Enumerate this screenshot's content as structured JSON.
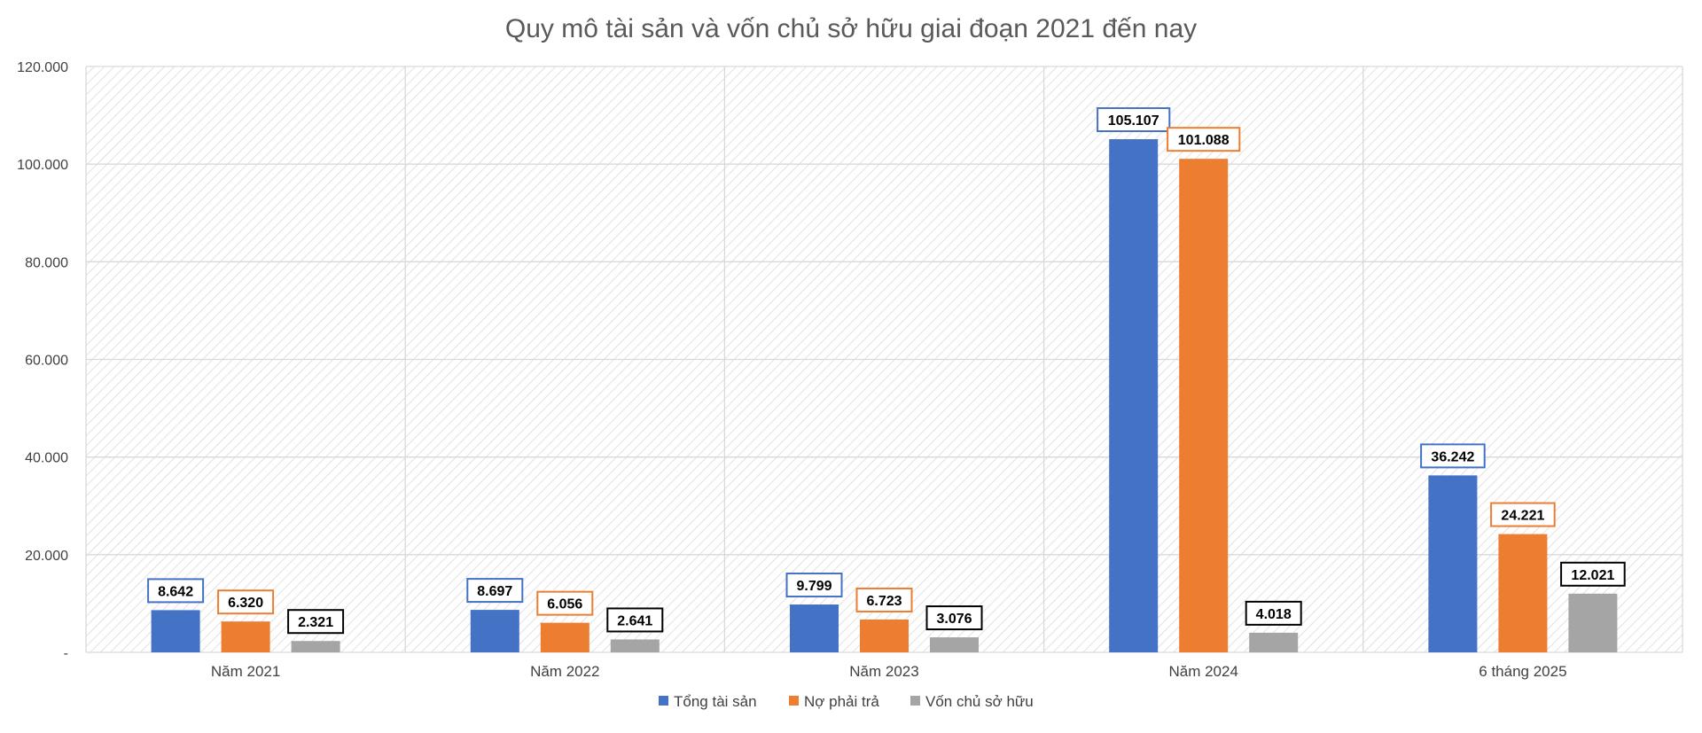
{
  "chart_data": {
    "type": "bar",
    "title": "Quy mô tài sản và vốn chủ sở hữu giai đoạn 2021 đến nay",
    "xlabel": "",
    "ylabel": "",
    "categories": [
      "Năm 2021",
      "Năm 2022",
      "Năm 2023",
      "Năm 2024",
      "6 tháng 2025"
    ],
    "series": [
      {
        "name": "Tổng tài sản",
        "color": "#4472C4",
        "values": [
          8642,
          8697,
          9799,
          105107,
          36242
        ],
        "labels": [
          "8.642",
          "8.697",
          "9.799",
          "105.107",
          "36.242"
        ]
      },
      {
        "name": "Nợ phải trả",
        "color": "#ED7D31",
        "values": [
          6320,
          6056,
          6723,
          101088,
          24221
        ],
        "labels": [
          "6.320",
          "6.056",
          "6.723",
          "101.088",
          "24.221"
        ]
      },
      {
        "name": "Vốn chủ sở hữu",
        "color": "#A5A5A5",
        "label_border": "#000000",
        "values": [
          2321,
          2641,
          3076,
          4018,
          12021
        ],
        "labels": [
          "2.321",
          "2.641",
          "3.076",
          "4.018",
          "12.021"
        ]
      }
    ],
    "ylim": [
      0,
      120000
    ],
    "yticks": [
      0,
      20000,
      40000,
      60000,
      80000,
      100000,
      120000
    ],
    "ytick_labels": [
      "-",
      "20.000",
      "40.000",
      "60.000",
      "80.000",
      "100.000",
      "120.000"
    ],
    "grid": true,
    "plot_fill": "hatched",
    "legend": "bottom-center"
  }
}
